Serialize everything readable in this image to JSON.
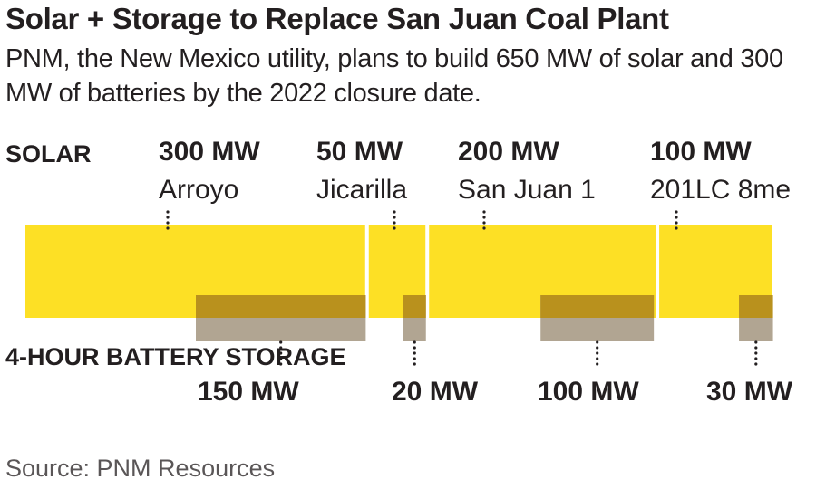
{
  "title": "Solar + Storage to Replace San Juan Coal Plant",
  "subtitle": "PNM, the New Mexico utility, plans to build 650 MW of solar and 300 MW of batteries by the 2022 closure date.",
  "labels": {
    "solar": "SOLAR",
    "battery": "4-HOUR BATTERY STORAGE"
  },
  "source": "Source: PNM Resources",
  "colors": {
    "solar": "#fde025",
    "battery_overlap": "#b9911d",
    "battery": "#b1a592",
    "leader": "#231f20"
  },
  "chart_data": {
    "type": "bar",
    "orientation": "horizontal-proportional",
    "categories": [
      "Arroyo",
      "Jicarilla",
      "San Juan 1",
      "201LC 8me"
    ],
    "series": [
      {
        "name": "SOLAR",
        "values": [
          300,
          50,
          200,
          100
        ],
        "value_labels": [
          "300 MW",
          "50 MW",
          "200 MW",
          "100 MW"
        ]
      },
      {
        "name": "4-HOUR BATTERY STORAGE",
        "values": [
          150,
          20,
          100,
          30
        ],
        "value_labels": [
          "150 MW",
          "20 MW",
          "100 MW",
          "30 MW"
        ]
      }
    ],
    "unit": "MW",
    "totals": {
      "solar": 650,
      "battery": 300
    },
    "legend": "none"
  }
}
